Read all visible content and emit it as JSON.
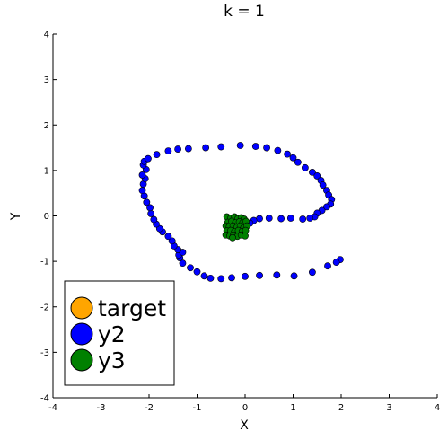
{
  "chart_data": {
    "type": "scatter",
    "title": "k = 1",
    "xlabel": "X",
    "ylabel": "Y",
    "xlim": [
      -4,
      4
    ],
    "ylim": [
      -4,
      4
    ],
    "xticks": [
      "-4",
      "-3",
      "-2",
      "-1",
      "0",
      "1",
      "2",
      "3",
      "4"
    ],
    "yticks": [
      "-4",
      "-3",
      "-2",
      "-1",
      "0",
      "1",
      "2",
      "3",
      "4"
    ],
    "grid": false,
    "legend_position": "bottom-left",
    "legend": [
      {
        "label": "target",
        "color": "#ffa500"
      },
      {
        "label": "y2",
        "color": "#0000ff"
      },
      {
        "label": "y3",
        "color": "#008000"
      }
    ],
    "series": [
      {
        "name": "target",
        "color": "#ffa500",
        "points": []
      },
      {
        "name": "y2",
        "color": "#0000ff",
        "points": [
          [
            1.98,
            -0.96
          ],
          [
            1.9,
            -1.02
          ],
          [
            1.72,
            -1.1
          ],
          [
            1.4,
            -1.24
          ],
          [
            1.02,
            -1.32
          ],
          [
            0.66,
            -1.3
          ],
          [
            0.3,
            -1.31
          ],
          [
            0.0,
            -1.33
          ],
          [
            -0.28,
            -1.36
          ],
          [
            -0.5,
            -1.38
          ],
          [
            -0.72,
            -1.37
          ],
          [
            -0.85,
            -1.32
          ],
          [
            -1.0,
            -1.23
          ],
          [
            -1.14,
            -1.14
          ],
          [
            -1.3,
            -1.04
          ],
          [
            -1.36,
            -0.92
          ],
          [
            -1.38,
            -0.86
          ],
          [
            -1.3,
            -0.8
          ],
          [
            -1.4,
            -0.74
          ],
          [
            -1.48,
            -0.66
          ],
          [
            -1.52,
            -0.55
          ],
          [
            -1.6,
            -0.45
          ],
          [
            -1.72,
            -0.35
          ],
          [
            -1.78,
            -0.28
          ],
          [
            -1.85,
            -0.18
          ],
          [
            -1.9,
            -0.08
          ],
          [
            -1.96,
            0.05
          ],
          [
            -1.98,
            0.18
          ],
          [
            -2.05,
            0.3
          ],
          [
            -2.1,
            0.44
          ],
          [
            -2.14,
            0.56
          ],
          [
            -2.12,
            0.7
          ],
          [
            -2.08,
            0.82
          ],
          [
            -2.14,
            0.9
          ],
          [
            -2.06,
            1.02
          ],
          [
            -2.12,
            1.12
          ],
          [
            -2.1,
            1.2
          ],
          [
            -2.02,
            1.26
          ],
          [
            -1.84,
            1.35
          ],
          [
            -1.6,
            1.43
          ],
          [
            -1.4,
            1.47
          ],
          [
            -1.18,
            1.48
          ],
          [
            -0.82,
            1.5
          ],
          [
            -0.5,
            1.52
          ],
          [
            -0.1,
            1.55
          ],
          [
            0.22,
            1.53
          ],
          [
            0.45,
            1.5
          ],
          [
            0.68,
            1.44
          ],
          [
            0.88,
            1.36
          ],
          [
            1.0,
            1.28
          ],
          [
            1.1,
            1.18
          ],
          [
            1.25,
            1.06
          ],
          [
            1.4,
            0.96
          ],
          [
            1.5,
            0.88
          ],
          [
            1.58,
            0.78
          ],
          [
            1.62,
            0.68
          ],
          [
            1.7,
            0.56
          ],
          [
            1.74,
            0.46
          ],
          [
            1.8,
            0.36
          ],
          [
            1.78,
            0.26
          ],
          [
            1.7,
            0.2
          ],
          [
            1.6,
            0.12
          ],
          [
            1.5,
            0.06
          ],
          [
            1.45,
            -0.02
          ],
          [
            1.35,
            -0.05
          ],
          [
            1.2,
            -0.07
          ],
          [
            0.95,
            -0.05
          ],
          [
            0.75,
            -0.06
          ],
          [
            0.5,
            -0.05
          ],
          [
            0.3,
            -0.06
          ],
          [
            0.18,
            -0.1
          ],
          [
            0.1,
            -0.16
          ]
        ]
      },
      {
        "name": "y3",
        "color": "#008000",
        "points": [
          [
            -0.38,
            -0.02
          ],
          [
            -0.3,
            -0.05
          ],
          [
            -0.22,
            -0.02
          ],
          [
            -0.15,
            -0.06
          ],
          [
            -0.08,
            -0.04
          ],
          [
            -0.02,
            -0.07
          ],
          [
            -0.36,
            -0.14
          ],
          [
            -0.28,
            -0.12
          ],
          [
            -0.2,
            -0.15
          ],
          [
            -0.12,
            -0.13
          ],
          [
            -0.05,
            -0.15
          ],
          [
            0.02,
            -0.12
          ],
          [
            -0.4,
            -0.22
          ],
          [
            -0.33,
            -0.24
          ],
          [
            -0.25,
            -0.22
          ],
          [
            -0.17,
            -0.25
          ],
          [
            -0.1,
            -0.22
          ],
          [
            -0.03,
            -0.26
          ],
          [
            0.04,
            -0.22
          ],
          [
            -0.38,
            -0.33
          ],
          [
            -0.3,
            -0.32
          ],
          [
            -0.22,
            -0.35
          ],
          [
            -0.14,
            -0.32
          ],
          [
            -0.06,
            -0.34
          ],
          [
            0.01,
            -0.32
          ],
          [
            -0.4,
            -0.42
          ],
          [
            -0.32,
            -0.44
          ],
          [
            -0.24,
            -0.42
          ],
          [
            -0.16,
            -0.45
          ],
          [
            -0.08,
            -0.42
          ],
          [
            0.0,
            -0.44
          ],
          [
            -0.26,
            -0.48
          ]
        ]
      }
    ]
  }
}
